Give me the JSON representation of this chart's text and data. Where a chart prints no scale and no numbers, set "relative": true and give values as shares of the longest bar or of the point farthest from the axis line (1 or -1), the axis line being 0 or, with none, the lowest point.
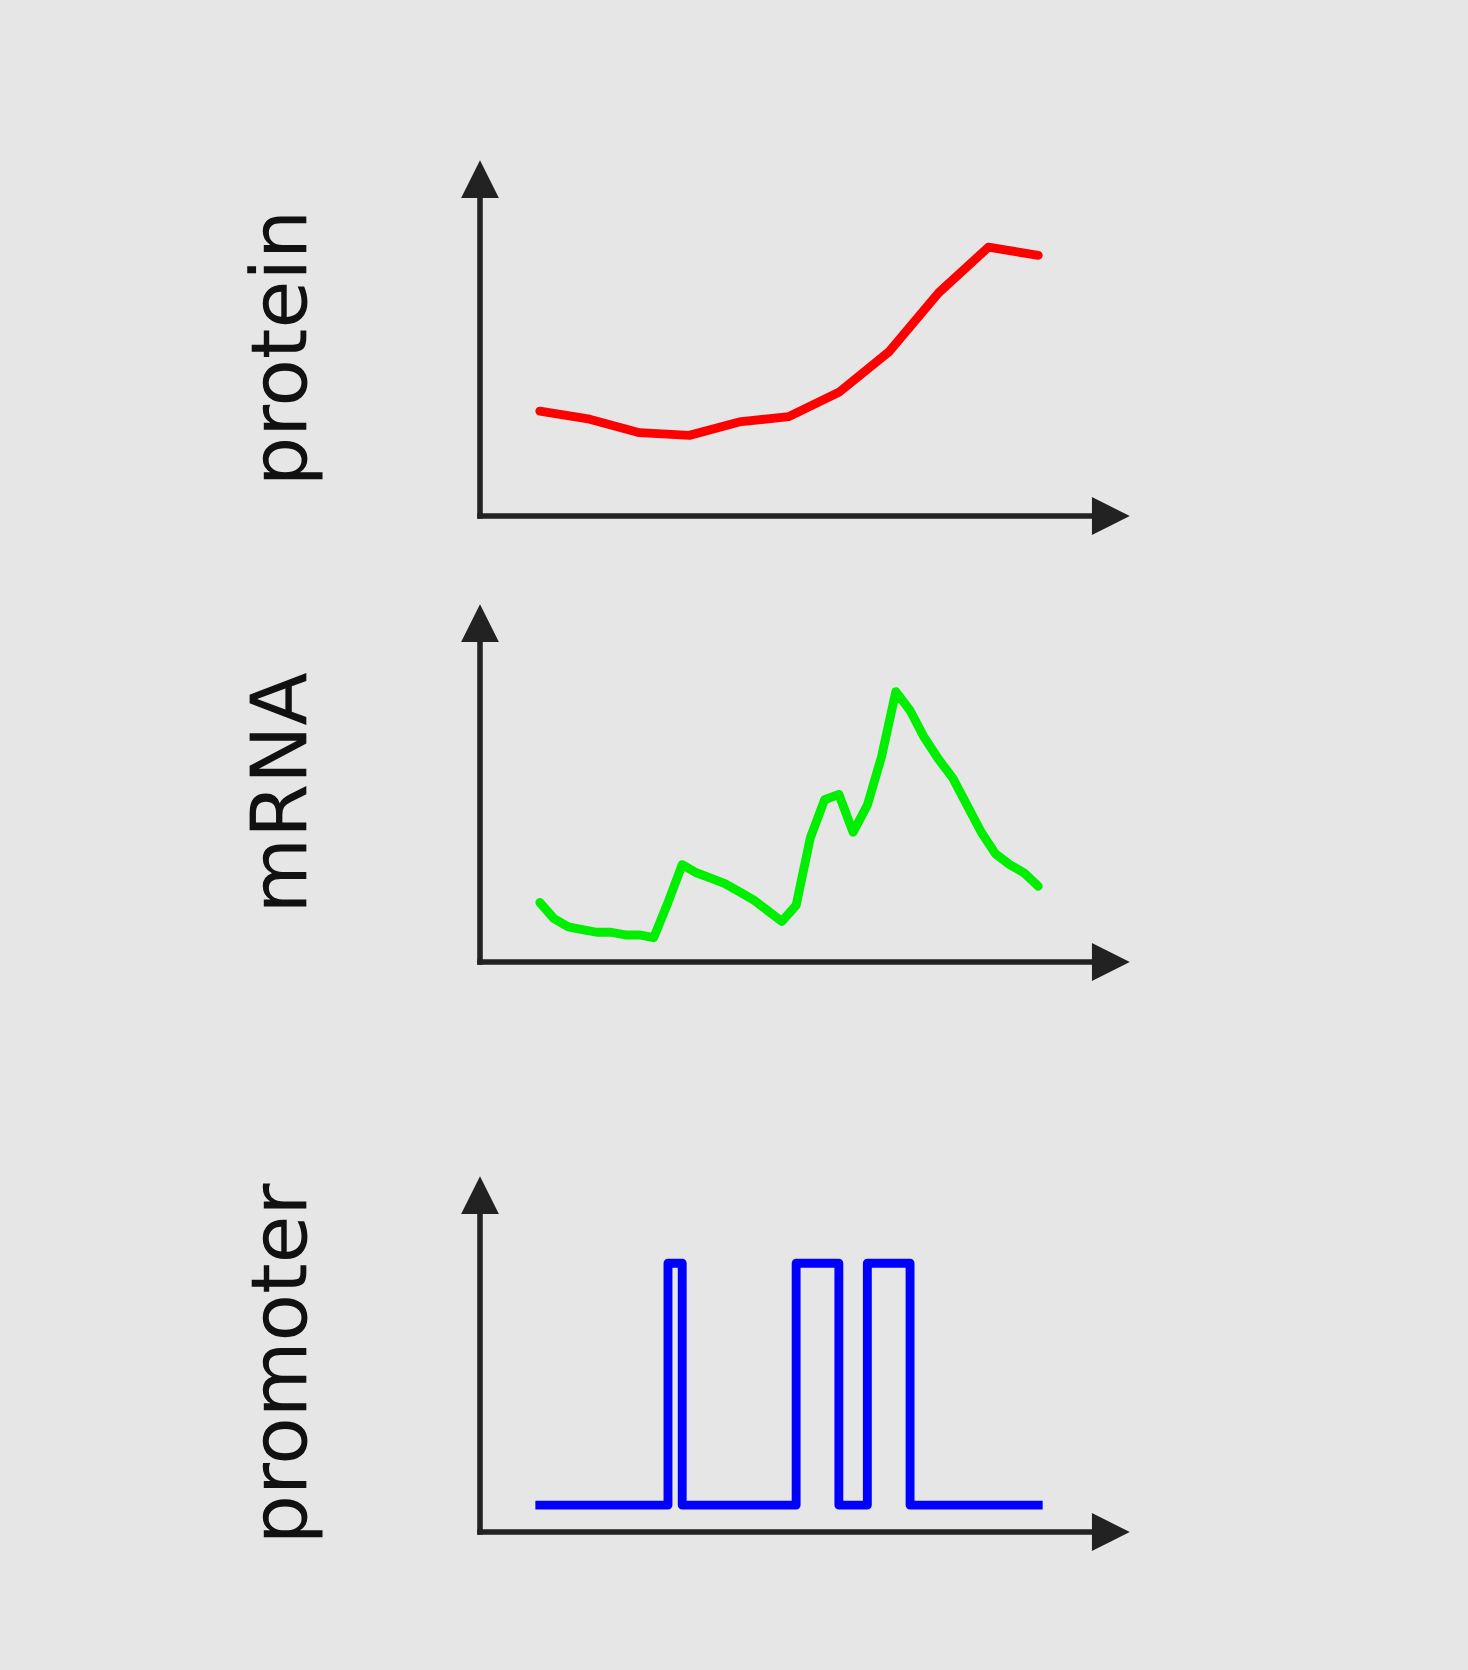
{
  "chart_data": [
    {
      "type": "line",
      "ylabel": "protein",
      "relative": true,
      "grid": false,
      "categories": [
        null,
        null,
        null,
        null,
        null,
        null,
        null,
        null,
        null,
        null,
        null
      ],
      "series": [
        {
          "color": "#ff0000",
          "values": [
            0.39,
            0.36,
            0.31,
            0.3,
            0.35,
            0.37,
            0.46,
            0.61,
            0.83,
            1.0,
            0.97
          ]
        }
      ]
    },
    {
      "type": "line",
      "ylabel": "mRNA",
      "relative": true,
      "grid": false,
      "categories": [
        null,
        null,
        null,
        null,
        null,
        null,
        null,
        null,
        null,
        null,
        null,
        null,
        null,
        null,
        null,
        null,
        null,
        null,
        null,
        null,
        null,
        null,
        null,
        null,
        null,
        null,
        null,
        null,
        null,
        null,
        null,
        null,
        null,
        null,
        null,
        null
      ],
      "series": [
        {
          "color": "#00ee00",
          "values": [
            0.22,
            0.16,
            0.13,
            0.12,
            0.11,
            0.11,
            0.1,
            0.1,
            0.09,
            0.22,
            0.36,
            0.33,
            0.31,
            0.29,
            0.26,
            0.23,
            0.19,
            0.15,
            0.21,
            0.46,
            0.6,
            0.62,
            0.48,
            0.58,
            0.76,
            1.0,
            0.93,
            0.83,
            0.75,
            0.68,
            0.58,
            0.48,
            0.4,
            0.36,
            0.33,
            0.28
          ]
        }
      ]
    },
    {
      "type": "step",
      "ylabel": "promoter",
      "relative": true,
      "grid": false,
      "categories": [
        null,
        null,
        null,
        null,
        null,
        null,
        null,
        null,
        null,
        null,
        null,
        null,
        null,
        null,
        null,
        null,
        null,
        null,
        null,
        null,
        null,
        null,
        null,
        null,
        null,
        null,
        null,
        null,
        null,
        null,
        null,
        null,
        null,
        null,
        null,
        null
      ],
      "series": [
        {
          "color": "#0000ff",
          "values": [
            0.1,
            0.1,
            0.1,
            0.1,
            0.1,
            0.1,
            0.1,
            0.1,
            0.1,
            1.0,
            0.1,
            0.1,
            0.1,
            0.1,
            0.1,
            0.1,
            0.1,
            0.1,
            1.0,
            1.0,
            1.0,
            0.1,
            0.1,
            1.0,
            1.0,
            1.0,
            0.1,
            0.1,
            0.1,
            0.1,
            0.1,
            0.1,
            0.1,
            0.1,
            0.1,
            0.1
          ]
        }
      ]
    }
  ]
}
